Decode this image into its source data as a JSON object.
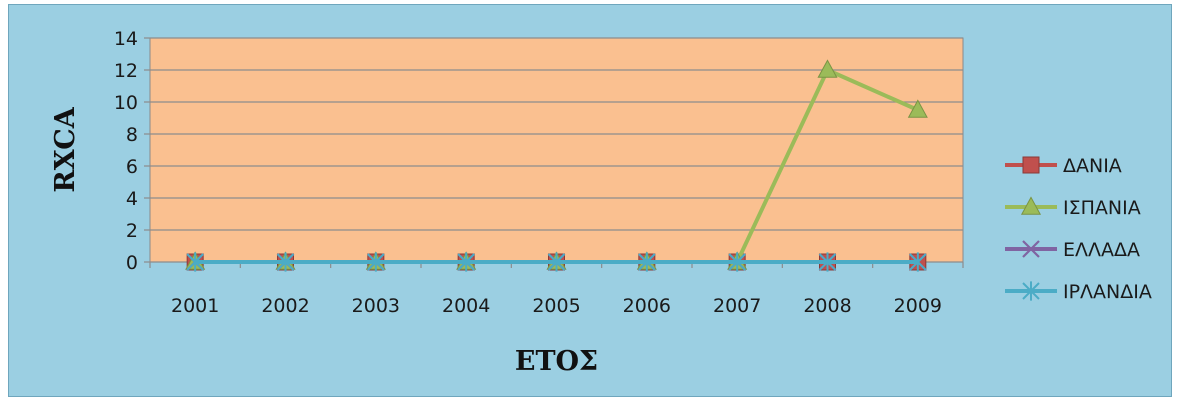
{
  "chart_data": {
    "type": "line",
    "xlabel": "ΕΤΟΣ",
    "ylabel": "RXCA",
    "ylim": [
      0,
      14
    ],
    "yticks": [
      0,
      2,
      4,
      6,
      8,
      10,
      12,
      14
    ],
    "categories": [
      "2001",
      "2002",
      "2003",
      "2004",
      "2005",
      "2006",
      "2007",
      "2008",
      "2009"
    ],
    "grid": "horizontal",
    "legend_position": "right",
    "series": [
      {
        "name": "ΔΑΝΙΑ",
        "values": [
          0,
          0,
          0,
          0,
          0,
          0,
          0,
          0,
          0
        ],
        "color": "#c0504d",
        "marker": "square"
      },
      {
        "name": "ΙΣΠΑΝΙΑ",
        "values": [
          0,
          0,
          0,
          0,
          0,
          0,
          0,
          12,
          9.5
        ],
        "color": "#9bbb59",
        "marker": "triangle"
      },
      {
        "name": "ΕΛΛΑΔΑ",
        "values": [
          0,
          0,
          0,
          0,
          0,
          0,
          0,
          0,
          0
        ],
        "color": "#8064a2",
        "marker": "x"
      },
      {
        "name": "ΙΡΛΑΝΔΙΑ",
        "values": [
          0,
          0,
          0,
          0,
          0,
          0,
          0,
          0,
          0
        ],
        "color": "#4bacc6",
        "marker": "star"
      }
    ],
    "plot_background": "#fac090",
    "chart_background": "#9bcfe2"
  }
}
